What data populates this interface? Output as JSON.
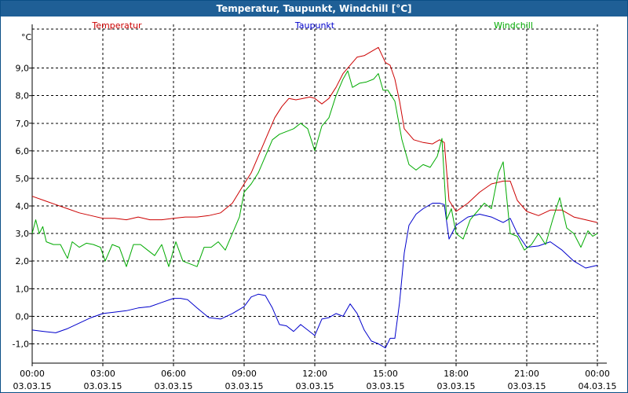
{
  "window": {
    "title": "Temperatur, Taupunkt, Windchill [°C]"
  },
  "colors": {
    "titlebar": "#1f5f96",
    "temperature": "#cc0000",
    "dewpoint": "#0000cc",
    "windchill": "#00aa00",
    "grid": "#000000",
    "text": "#000000"
  },
  "chart_data": {
    "type": "line",
    "title": "Temperatur, Taupunkt, Windchill [°C]",
    "ylabel": "°C",
    "ylim": [
      -1.7,
      10.3
    ],
    "xlim": [
      0,
      24
    ],
    "yticks": [
      -1.0,
      0.0,
      1.0,
      2.0,
      3.0,
      4.0,
      5.0,
      6.0,
      7.0,
      8.0,
      9.0
    ],
    "ytick_labels": [
      "-1,0",
      "0,0",
      "1,0",
      "2,0",
      "3,0",
      "4,0",
      "5,0",
      "6,0",
      "7,0",
      "8,0",
      "9,0"
    ],
    "xticks": [
      0,
      3,
      6,
      9,
      12,
      15,
      18,
      21,
      24
    ],
    "xtick_time_labels": [
      "00:00",
      "03:00",
      "06:00",
      "09:00",
      "12:00",
      "15:00",
      "18:00",
      "21:00",
      "00:00"
    ],
    "xtick_date_labels": [
      "03.03.15",
      "03.03.15",
      "03.03.15",
      "03.03.15",
      "03.03.15",
      "03.03.15",
      "03.03.15",
      "03.03.15",
      "04.03.15"
    ],
    "grid": true,
    "legend_placement": "top",
    "series": [
      {
        "name": "Temperatur",
        "color": "#cc0000",
        "points": [
          [
            0,
            4.35
          ],
          [
            0.5,
            4.2
          ],
          [
            1,
            4.05
          ],
          [
            1.5,
            3.9
          ],
          [
            2,
            3.75
          ],
          [
            2.5,
            3.65
          ],
          [
            3,
            3.55
          ],
          [
            3.5,
            3.55
          ],
          [
            4,
            3.5
          ],
          [
            4.5,
            3.6
          ],
          [
            5,
            3.5
          ],
          [
            5.5,
            3.5
          ],
          [
            6,
            3.55
          ],
          [
            6.5,
            3.6
          ],
          [
            7,
            3.6
          ],
          [
            7.5,
            3.65
          ],
          [
            8,
            3.75
          ],
          [
            8.5,
            4.1
          ],
          [
            9,
            4.8
          ],
          [
            9.3,
            5.2
          ],
          [
            9.6,
            5.8
          ],
          [
            10,
            6.6
          ],
          [
            10.3,
            7.2
          ],
          [
            10.6,
            7.6
          ],
          [
            10.9,
            7.9
          ],
          [
            11.2,
            7.85
          ],
          [
            11.5,
            7.9
          ],
          [
            11.8,
            7.95
          ],
          [
            12,
            7.9
          ],
          [
            12.3,
            7.7
          ],
          [
            12.6,
            7.9
          ],
          [
            12.9,
            8.3
          ],
          [
            13.2,
            8.8
          ],
          [
            13.5,
            9.1
          ],
          [
            13.8,
            9.4
          ],
          [
            14.1,
            9.45
          ],
          [
            14.4,
            9.6
          ],
          [
            14.7,
            9.75
          ],
          [
            15,
            9.2
          ],
          [
            15.2,
            9.1
          ],
          [
            15.4,
            8.6
          ],
          [
            15.6,
            7.8
          ],
          [
            15.8,
            6.8
          ],
          [
            16.2,
            6.4
          ],
          [
            16.6,
            6.3
          ],
          [
            17,
            6.25
          ],
          [
            17.3,
            6.4
          ],
          [
            17.5,
            6.3
          ],
          [
            17.7,
            4.2
          ],
          [
            18,
            3.8
          ],
          [
            18.5,
            4.1
          ],
          [
            19,
            4.5
          ],
          [
            19.5,
            4.8
          ],
          [
            20,
            4.9
          ],
          [
            20.3,
            4.9
          ],
          [
            20.6,
            4.2
          ],
          [
            21,
            3.8
          ],
          [
            21.5,
            3.65
          ],
          [
            22,
            3.85
          ],
          [
            22.5,
            3.85
          ],
          [
            23,
            3.6
          ],
          [
            23.5,
            3.5
          ],
          [
            24,
            3.4
          ]
        ]
      },
      {
        "name": "Taupunkt",
        "color": "#0000cc",
        "points": [
          [
            0,
            -0.5
          ],
          [
            0.5,
            -0.55
          ],
          [
            1,
            -0.6
          ],
          [
            1.5,
            -0.45
          ],
          [
            2,
            -0.25
          ],
          [
            2.5,
            -0.05
          ],
          [
            3,
            0.1
          ],
          [
            3.5,
            0.15
          ],
          [
            4,
            0.2
          ],
          [
            4.5,
            0.3
          ],
          [
            5,
            0.35
          ],
          [
            5.5,
            0.5
          ],
          [
            6,
            0.65
          ],
          [
            6.3,
            0.65
          ],
          [
            6.6,
            0.6
          ],
          [
            7,
            0.3
          ],
          [
            7.5,
            -0.05
          ],
          [
            8,
            -0.1
          ],
          [
            8.5,
            0.1
          ],
          [
            9,
            0.35
          ],
          [
            9.3,
            0.7
          ],
          [
            9.6,
            0.8
          ],
          [
            9.9,
            0.75
          ],
          [
            10.2,
            0.3
          ],
          [
            10.5,
            -0.3
          ],
          [
            10.8,
            -0.35
          ],
          [
            11.1,
            -0.55
          ],
          [
            11.4,
            -0.3
          ],
          [
            11.7,
            -0.5
          ],
          [
            12,
            -0.7
          ],
          [
            12.3,
            -0.1
          ],
          [
            12.6,
            -0.05
          ],
          [
            12.9,
            0.1
          ],
          [
            13.2,
            0.0
          ],
          [
            13.5,
            0.45
          ],
          [
            13.8,
            0.1
          ],
          [
            14.1,
            -0.5
          ],
          [
            14.4,
            -0.9
          ],
          [
            14.7,
            -1.0
          ],
          [
            15,
            -1.15
          ],
          [
            15.2,
            -0.8
          ],
          [
            15.4,
            -0.8
          ],
          [
            15.6,
            0.5
          ],
          [
            15.8,
            2.3
          ],
          [
            16,
            3.3
          ],
          [
            16.3,
            3.7
          ],
          [
            16.6,
            3.9
          ],
          [
            17,
            4.1
          ],
          [
            17.3,
            4.1
          ],
          [
            17.5,
            4.05
          ],
          [
            17.7,
            2.8
          ],
          [
            18,
            3.3
          ],
          [
            18.5,
            3.6
          ],
          [
            19,
            3.7
          ],
          [
            19.5,
            3.6
          ],
          [
            20,
            3.4
          ],
          [
            20.3,
            3.55
          ],
          [
            20.6,
            3.0
          ],
          [
            21,
            2.5
          ],
          [
            21.5,
            2.55
          ],
          [
            22,
            2.7
          ],
          [
            22.5,
            2.4
          ],
          [
            23,
            2.0
          ],
          [
            23.5,
            1.75
          ],
          [
            24,
            1.85
          ]
        ]
      },
      {
        "name": "Windchill",
        "color": "#00aa00",
        "points": [
          [
            0,
            3.0
          ],
          [
            0.15,
            3.5
          ],
          [
            0.3,
            3.0
          ],
          [
            0.45,
            3.25
          ],
          [
            0.6,
            2.7
          ],
          [
            0.9,
            2.6
          ],
          [
            1.2,
            2.6
          ],
          [
            1.5,
            2.1
          ],
          [
            1.7,
            2.7
          ],
          [
            2,
            2.5
          ],
          [
            2.3,
            2.65
          ],
          [
            2.6,
            2.6
          ],
          [
            2.9,
            2.5
          ],
          [
            3.1,
            2.0
          ],
          [
            3.4,
            2.6
          ],
          [
            3.7,
            2.5
          ],
          [
            4,
            1.8
          ],
          [
            4.3,
            2.6
          ],
          [
            4.6,
            2.6
          ],
          [
            4.9,
            2.4
          ],
          [
            5.2,
            2.2
          ],
          [
            5.5,
            2.6
          ],
          [
            5.8,
            1.8
          ],
          [
            6.1,
            2.7
          ],
          [
            6.4,
            2.0
          ],
          [
            6.7,
            1.9
          ],
          [
            7,
            1.8
          ],
          [
            7.3,
            2.5
          ],
          [
            7.6,
            2.5
          ],
          [
            7.9,
            2.7
          ],
          [
            8.2,
            2.4
          ],
          [
            8.5,
            3.0
          ],
          [
            8.8,
            3.6
          ],
          [
            9,
            4.5
          ],
          [
            9.3,
            4.8
          ],
          [
            9.6,
            5.2
          ],
          [
            9.9,
            5.8
          ],
          [
            10.2,
            6.4
          ],
          [
            10.5,
            6.6
          ],
          [
            10.8,
            6.7
          ],
          [
            11.1,
            6.8
          ],
          [
            11.4,
            7.0
          ],
          [
            11.7,
            6.8
          ],
          [
            12,
            6.0
          ],
          [
            12.3,
            6.9
          ],
          [
            12.6,
            7.2
          ],
          [
            12.9,
            8.0
          ],
          [
            13.2,
            8.6
          ],
          [
            13.4,
            8.9
          ],
          [
            13.6,
            8.3
          ],
          [
            13.9,
            8.45
          ],
          [
            14.2,
            8.5
          ],
          [
            14.5,
            8.6
          ],
          [
            14.7,
            8.8
          ],
          [
            14.9,
            8.2
          ],
          [
            15.1,
            8.2
          ],
          [
            15.4,
            7.8
          ],
          [
            15.7,
            6.4
          ],
          [
            16,
            5.5
          ],
          [
            16.3,
            5.3
          ],
          [
            16.6,
            5.5
          ],
          [
            16.9,
            5.4
          ],
          [
            17.2,
            5.8
          ],
          [
            17.4,
            6.45
          ],
          [
            17.6,
            3.5
          ],
          [
            17.8,
            3.9
          ],
          [
            18,
            3.0
          ],
          [
            18.3,
            2.8
          ],
          [
            18.6,
            3.5
          ],
          [
            18.9,
            3.8
          ],
          [
            19.2,
            4.1
          ],
          [
            19.5,
            3.9
          ],
          [
            19.8,
            5.2
          ],
          [
            20,
            5.6
          ],
          [
            20.3,
            3.0
          ],
          [
            20.6,
            2.9
          ],
          [
            20.9,
            2.4
          ],
          [
            21.2,
            2.6
          ],
          [
            21.5,
            3.0
          ],
          [
            21.8,
            2.6
          ],
          [
            22.1,
            3.5
          ],
          [
            22.4,
            4.3
          ],
          [
            22.7,
            3.2
          ],
          [
            23,
            3.0
          ],
          [
            23.3,
            2.5
          ],
          [
            23.6,
            3.1
          ],
          [
            23.8,
            2.9
          ],
          [
            24,
            3.0
          ]
        ]
      }
    ]
  }
}
